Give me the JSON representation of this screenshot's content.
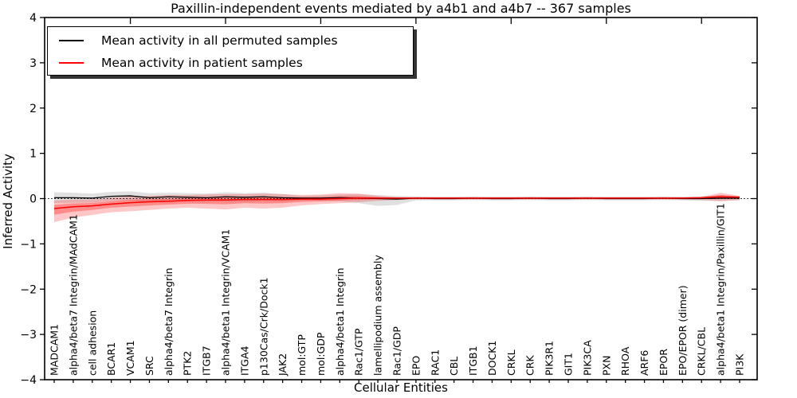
{
  "chart_data": {
    "type": "line",
    "title": "Paxillin-independent events mediated by a4b1 and a4b7 -- 367 samples",
    "xlabel": "Cellular Entities",
    "ylabel": "Inferred Activity",
    "ylim": [
      -4,
      4
    ],
    "yticks": [
      4,
      3,
      2,
      1,
      0,
      -1,
      -2,
      -3,
      -4
    ],
    "ytick_labels": [
      "4",
      "3",
      "2",
      "1",
      "0",
      "−1",
      "−2",
      "−3",
      "−4"
    ],
    "grid": false,
    "zero_line_style": "dotted",
    "legend_position": "upper-left",
    "frame_color": "#000000",
    "categories": [
      "MADCAM1",
      "alpha4/beta7 Integrin/MAdCAM1",
      "cell adhesion",
      "BCAR1",
      "VCAM1",
      "SRC",
      "alpha4/beta7 Integrin",
      "PTK2",
      "ITGB7",
      "alpha4/beta1 Integrin/VCAM1",
      "ITGA4",
      "p130Cas/Crk/Dock1",
      "JAK2",
      "mol:GTP",
      "mol:GDP",
      "alpha4/beta1 Integrin",
      "Rac1/GTP",
      "lamellipodium assembly",
      "Rac1/GDP",
      "EPO",
      "RAC1",
      "CBL",
      "ITGB1",
      "DOCK1",
      "CRKL",
      "CRK",
      "PIK3R1",
      "GIT1",
      "PIK3CA",
      "PXN",
      "RHOA",
      "ARF6",
      "EPOR",
      "EPO/EPOR (dimer)",
      "CRKL/CBL",
      "alpha4/beta1 Integrin/Paxillin/GIT1",
      "PI3K"
    ],
    "series": [
      {
        "name": "Mean activity in all permuted samples",
        "color": "#000000",
        "band_color": "#cccccc",
        "band_opacity": 0.6,
        "values": [
          0.02,
          0.02,
          0.01,
          0.05,
          0.06,
          0.02,
          0.04,
          0.03,
          0.02,
          0.04,
          0.03,
          0.04,
          0.02,
          0.01,
          0.01,
          0.02,
          0.01,
          0.0,
          -0.01,
          0.01,
          0.0,
          0.0,
          0.01,
          0.0,
          0.0,
          0.01,
          0.0,
          0.0,
          0.01,
          0.0,
          0.0,
          0.0,
          0.01,
          0.0,
          0.0,
          0.01,
          0.01
        ],
        "band_upper": [
          0.14,
          0.13,
          0.11,
          0.15,
          0.16,
          0.12,
          0.13,
          0.12,
          0.11,
          0.14,
          0.12,
          0.13,
          0.1,
          0.06,
          0.07,
          0.09,
          0.1,
          0.08,
          0.06,
          0.05,
          0.04,
          0.04,
          0.05,
          0.04,
          0.04,
          0.05,
          0.04,
          0.04,
          0.05,
          0.04,
          0.04,
          0.04,
          0.05,
          0.04,
          0.05,
          0.07,
          0.06
        ],
        "band_lower": [
          -0.1,
          -0.09,
          -0.09,
          -0.05,
          -0.04,
          -0.08,
          -0.05,
          -0.06,
          -0.07,
          -0.06,
          -0.06,
          -0.05,
          -0.06,
          -0.04,
          -0.05,
          -0.06,
          -0.1,
          -0.16,
          -0.14,
          -0.04,
          -0.04,
          -0.04,
          -0.03,
          -0.04,
          -0.04,
          -0.03,
          -0.04,
          -0.04,
          -0.03,
          -0.04,
          -0.04,
          -0.04,
          -0.03,
          -0.04,
          -0.05,
          -0.05,
          -0.04
        ]
      },
      {
        "name": "Mean activity in patient samples",
        "color": "#ff0000",
        "band_color": "#ff0000",
        "band_opacity": 0.22,
        "values": [
          -0.22,
          -0.18,
          -0.16,
          -0.12,
          -0.09,
          -0.07,
          -0.06,
          -0.04,
          -0.03,
          -0.03,
          -0.02,
          -0.02,
          -0.02,
          -0.01,
          -0.01,
          0.0,
          0.01,
          0.01,
          0.01,
          0.01,
          0.01,
          0.01,
          0.01,
          0.01,
          0.01,
          0.01,
          0.01,
          0.01,
          0.01,
          0.01,
          0.01,
          0.01,
          0.01,
          0.01,
          0.02,
          0.04,
          0.03
        ],
        "band_upper": [
          -0.04,
          -0.02,
          -0.02,
          0.02,
          0.05,
          0.06,
          0.08,
          0.08,
          0.09,
          0.1,
          0.1,
          0.11,
          0.1,
          0.08,
          0.09,
          0.12,
          0.11,
          0.06,
          0.03,
          0.03,
          0.03,
          0.03,
          0.03,
          0.03,
          0.03,
          0.03,
          0.03,
          0.03,
          0.03,
          0.03,
          0.03,
          0.03,
          0.03,
          0.03,
          0.04,
          0.13,
          0.06
        ],
        "band_lower": [
          -0.52,
          -0.42,
          -0.36,
          -0.3,
          -0.28,
          -0.25,
          -0.22,
          -0.2,
          -0.22,
          -0.24,
          -0.2,
          -0.22,
          -0.2,
          -0.15,
          -0.12,
          -0.1,
          -0.08,
          -0.05,
          -0.03,
          -0.02,
          -0.02,
          -0.02,
          -0.02,
          -0.02,
          -0.02,
          -0.02,
          -0.02,
          -0.02,
          -0.02,
          -0.02,
          -0.02,
          -0.02,
          -0.02,
          -0.02,
          -0.03,
          -0.06,
          -0.03
        ]
      }
    ]
  }
}
